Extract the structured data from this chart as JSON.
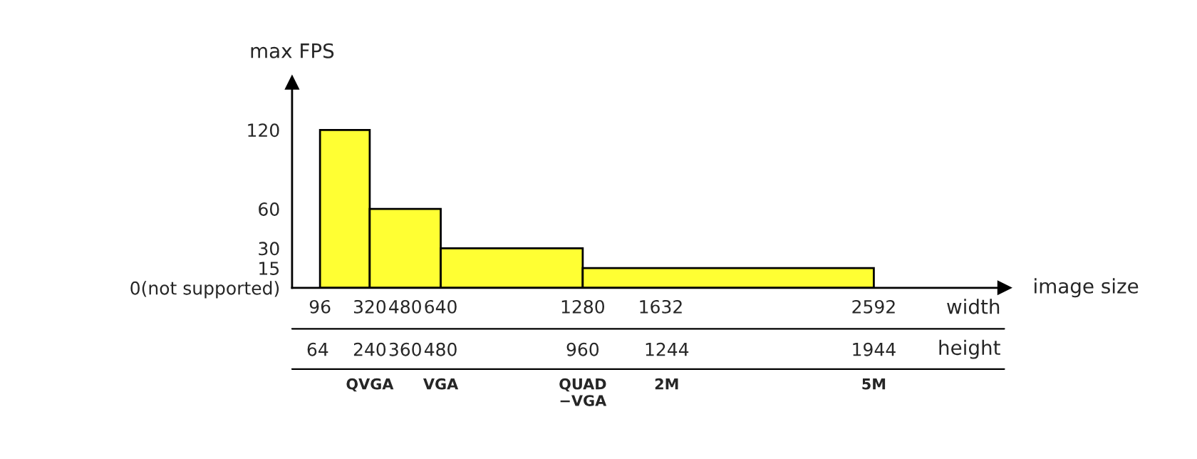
{
  "chart_data": {
    "type": "histogram",
    "bins": [
      96,
      320,
      640,
      1280,
      2592
    ],
    "values": [
      120,
      60,
      30,
      15
    ],
    "color": "#ffff33",
    "ylabel": "max FPS",
    "xlabel": "image size",
    "x2label": "height",
    "annotations": [
      "width",
      "QVGA",
      "VGA",
      "QUAD\n−VGA",
      "2M",
      "5M"
    ],
    "xlim": [
      -30,
      3180
    ],
    "xticks": [
      96,
      320,
      480,
      640,
      1280,
      1632,
      2592
    ],
    "x2lim": [
      -22.5,
      2385
    ],
    "x2ticks": [
      64,
      {
        "value": 240,
        "label": "240"
      },
      360,
      {
        "value": 480,
        "label": "480"
      },
      {
        "value": 960,
        "label": "960"
      },
      {
        "value": 1244,
        "label": "1244"
      },
      {
        "value": 1944,
        "label": "1944"
      }
    ],
    "ylim": [
      0,
      156
    ],
    "yticks": [
      {
        "value": 0,
        "label": "0(not supported)"
      },
      15,
      30,
      60,
      120
    ],
    "grid": false,
    "legend": false
  }
}
